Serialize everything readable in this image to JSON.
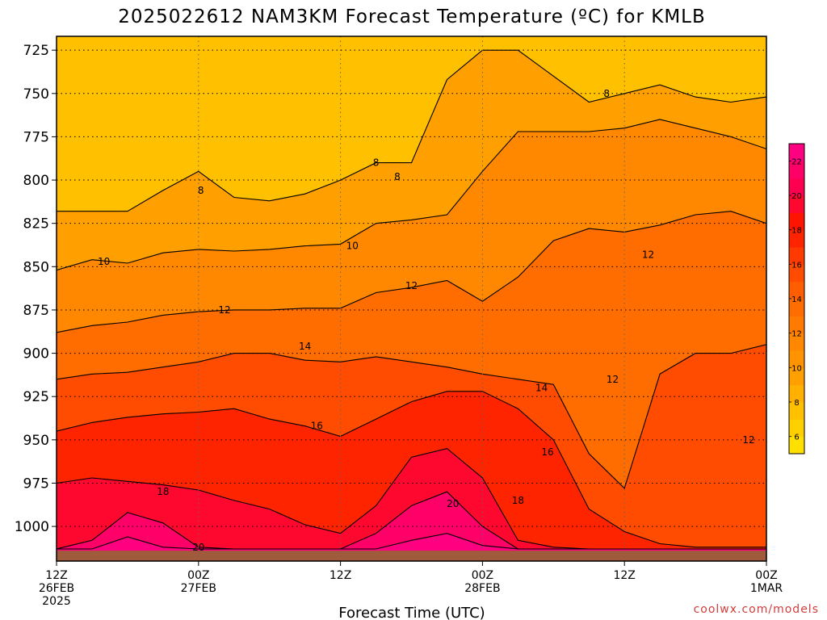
{
  "chart_data": {
    "type": "heatmap",
    "title": "2025022612 NAM3KM Forecast Temperature (ºC) for KMLB",
    "xlabel": "Forecast Time (UTC)",
    "ylabel": "",
    "credit": "coolwx.com/models",
    "x_ticks": [
      {
        "hours": 0,
        "lines": [
          "12Z",
          "26FEB",
          "2025"
        ]
      },
      {
        "hours": 12,
        "lines": [
          "00Z",
          "27FEB"
        ]
      },
      {
        "hours": 24,
        "lines": [
          "12Z"
        ]
      },
      {
        "hours": 36,
        "lines": [
          "00Z",
          "28FEB"
        ]
      },
      {
        "hours": 48,
        "lines": [
          "12Z"
        ]
      },
      {
        "hours": 60,
        "lines": [
          "00Z",
          "1MAR"
        ]
      }
    ],
    "xlim": [
      0,
      60
    ],
    "y_ticks": [
      725,
      750,
      775,
      800,
      825,
      850,
      875,
      900,
      925,
      950,
      975,
      1000
    ],
    "ylim": [
      1020,
      717
    ],
    "y_unit": "hPa",
    "grid": true,
    "colorbar": {
      "labels": [
        6,
        8,
        10,
        12,
        14,
        16,
        18,
        20,
        22
      ],
      "levels": [
        {
          "min": 5,
          "max": 6,
          "color": "#ffe000"
        },
        {
          "min": 6,
          "max": 7,
          "color": "#ffd000"
        },
        {
          "min": 7,
          "max": 8,
          "color": "#ffc000"
        },
        {
          "min": 8,
          "max": 9,
          "color": "#ffb000"
        },
        {
          "min": 9,
          "max": 10,
          "color": "#ffa000"
        },
        {
          "min": 10,
          "max": 11,
          "color": "#ff9400"
        },
        {
          "min": 11,
          "max": 12,
          "color": "#ff8800"
        },
        {
          "min": 12,
          "max": 13,
          "color": "#ff7b00"
        },
        {
          "min": 13,
          "max": 14,
          "color": "#ff6d00"
        },
        {
          "min": 14,
          "max": 15,
          "color": "#ff5e00"
        },
        {
          "min": 15,
          "max": 16,
          "color": "#ff4c00"
        },
        {
          "min": 16,
          "max": 17,
          "color": "#ff3a00"
        },
        {
          "min": 17,
          "max": 18,
          "color": "#ff2400"
        },
        {
          "min": 18,
          "max": 19,
          "color": "#ff1400"
        },
        {
          "min": 19,
          "max": 20,
          "color": "#ff0830"
        },
        {
          "min": 20,
          "max": 21,
          "color": "#ff0050"
        },
        {
          "min": 21,
          "max": 22,
          "color": "#ff0068"
        },
        {
          "min": 22,
          "max": 23,
          "color": "#ff0080"
        }
      ]
    },
    "ground_color": "#a05a3c",
    "ground_level_hPa": 1014,
    "series": [
      {
        "isotherm": 8,
        "x": [
          0,
          6,
          9,
          12,
          15,
          18,
          21,
          24,
          27,
          30,
          33,
          36,
          39,
          42,
          45,
          48,
          51,
          54,
          57,
          60
        ],
        "p": [
          818,
          818,
          806,
          795,
          810,
          812,
          808,
          800,
          790,
          790,
          742,
          725,
          725,
          740,
          755,
          750,
          745,
          752,
          755,
          752
        ]
      },
      {
        "isotherm": 10,
        "x": [
          0,
          3,
          6,
          9,
          12,
          15,
          18,
          21,
          24,
          27,
          30,
          33,
          36,
          39,
          42,
          45,
          48,
          51,
          54,
          57,
          60
        ],
        "p": [
          852,
          846,
          848,
          842,
          840,
          841,
          840,
          838,
          837,
          825,
          823,
          820,
          795,
          772,
          772,
          772,
          770,
          765,
          770,
          775,
          782
        ]
      },
      {
        "isotherm": 12,
        "x": [
          0,
          3,
          6,
          9,
          12,
          15,
          18,
          21,
          24,
          27,
          30,
          33,
          36,
          39,
          42,
          45,
          48,
          51,
          54,
          57,
          60
        ],
        "p": [
          888,
          884,
          882,
          878,
          876,
          875,
          875,
          874,
          874,
          865,
          862,
          858,
          870,
          856,
          835,
          828,
          830,
          826,
          820,
          818,
          825
        ]
      },
      {
        "isotherm": 14,
        "x": [
          0,
          3,
          6,
          9,
          12,
          15,
          18,
          21,
          24,
          27,
          30,
          33,
          36,
          39,
          42,
          45,
          48,
          51,
          54,
          57,
          60
        ],
        "p": [
          915,
          912,
          911,
          908,
          905,
          900,
          900,
          904,
          905,
          902,
          905,
          908,
          912,
          915,
          918,
          958,
          978,
          912,
          900,
          900,
          895
        ]
      },
      {
        "isotherm": 16,
        "x": [
          0,
          3,
          6,
          9,
          12,
          15,
          18,
          21,
          24,
          27,
          30,
          33,
          36,
          39,
          42,
          45,
          48,
          51,
          54,
          57,
          60
        ],
        "p": [
          945,
          940,
          937,
          935,
          934,
          932,
          938,
          942,
          948,
          938,
          928,
          922,
          922,
          932,
          950,
          990,
          1003,
          1010,
          1012,
          1012,
          1012
        ]
      },
      {
        "isotherm": 18,
        "x": [
          0,
          3,
          6,
          9,
          12,
          15,
          18,
          21,
          24,
          27,
          30,
          33,
          36,
          39,
          42,
          45,
          48,
          51,
          54,
          57,
          60
        ],
        "p": [
          975,
          972,
          974,
          976,
          979,
          985,
          990,
          999,
          1004,
          988,
          960,
          955,
          972,
          1008,
          1012,
          1013,
          1013,
          1013,
          1013,
          1013,
          1013
        ]
      },
      {
        "isotherm": 20,
        "x": [
          0,
          3,
          6,
          9,
          12,
          15,
          18,
          21,
          24,
          27,
          30,
          33,
          36,
          39,
          42,
          45,
          48,
          51,
          54,
          57,
          60
        ],
        "p": [
          1013,
          1008,
          992,
          998,
          1012,
          1013,
          1013,
          1013,
          1013,
          1004,
          988,
          980,
          1000,
          1013,
          1013,
          1013,
          1013,
          1013,
          1013,
          1013,
          1013
        ]
      },
      {
        "isotherm": 22,
        "x": [
          0,
          3,
          6,
          9,
          12,
          15,
          18,
          21,
          24,
          27,
          30,
          33,
          36,
          39,
          42,
          45,
          48,
          51,
          54,
          57,
          60
        ],
        "p": [
          1013,
          1013,
          1006,
          1012,
          1013,
          1013,
          1013,
          1013,
          1013,
          1013,
          1008,
          1004,
          1011,
          1013,
          1013,
          1013,
          1013,
          1013,
          1013,
          1013,
          1013
        ]
      }
    ],
    "contour_labels": [
      {
        "text": "8",
        "x": 12.2,
        "p": 806
      },
      {
        "text": "8",
        "x": 27.0,
        "p": 790
      },
      {
        "text": "8",
        "x": 28.8,
        "p": 798
      },
      {
        "text": "8",
        "x": 46.5,
        "p": 750
      },
      {
        "text": "10",
        "x": 4.0,
        "p": 847
      },
      {
        "text": "10",
        "x": 25.0,
        "p": 838
      },
      {
        "text": "12",
        "x": 14.2,
        "p": 875
      },
      {
        "text": "12",
        "x": 30.0,
        "p": 861
      },
      {
        "text": "12",
        "x": 50.0,
        "p": 843
      },
      {
        "text": "12",
        "x": 47.0,
        "p": 915
      },
      {
        "text": "12",
        "x": 58.5,
        "p": 950
      },
      {
        "text": "14",
        "x": 21.0,
        "p": 896
      },
      {
        "text": "14",
        "x": 41.0,
        "p": 920
      },
      {
        "text": "16",
        "x": 22.0,
        "p": 942
      },
      {
        "text": "16",
        "x": 41.5,
        "p": 957
      },
      {
        "text": "18",
        "x": 9.0,
        "p": 980
      },
      {
        "text": "18",
        "x": 39.0,
        "p": 985
      },
      {
        "text": "20",
        "x": 33.5,
        "p": 987
      },
      {
        "text": "20",
        "x": 12.0,
        "p": 1012
      }
    ]
  }
}
